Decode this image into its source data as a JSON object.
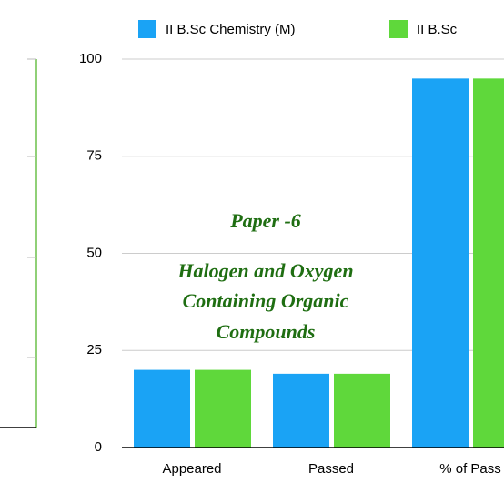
{
  "chart_data": {
    "type": "bar",
    "categories": [
      "Appeared",
      "Passed",
      "% of Pass"
    ],
    "series": [
      {
        "name": "II B.Sc Chemistry (M)",
        "color": "#1aa3f5",
        "values": [
          20,
          19,
          95
        ]
      },
      {
        "name": "II B.Sc",
        "color": "#5fd83b",
        "values": [
          20,
          19,
          95
        ]
      }
    ],
    "ylim": [
      0,
      100
    ],
    "yticks": [
      0,
      25,
      50,
      75,
      100
    ],
    "grid": true,
    "annotations": [
      "Paper -6",
      "Halogen and Oxygen",
      "Containing Organic",
      "Compounds"
    ]
  }
}
